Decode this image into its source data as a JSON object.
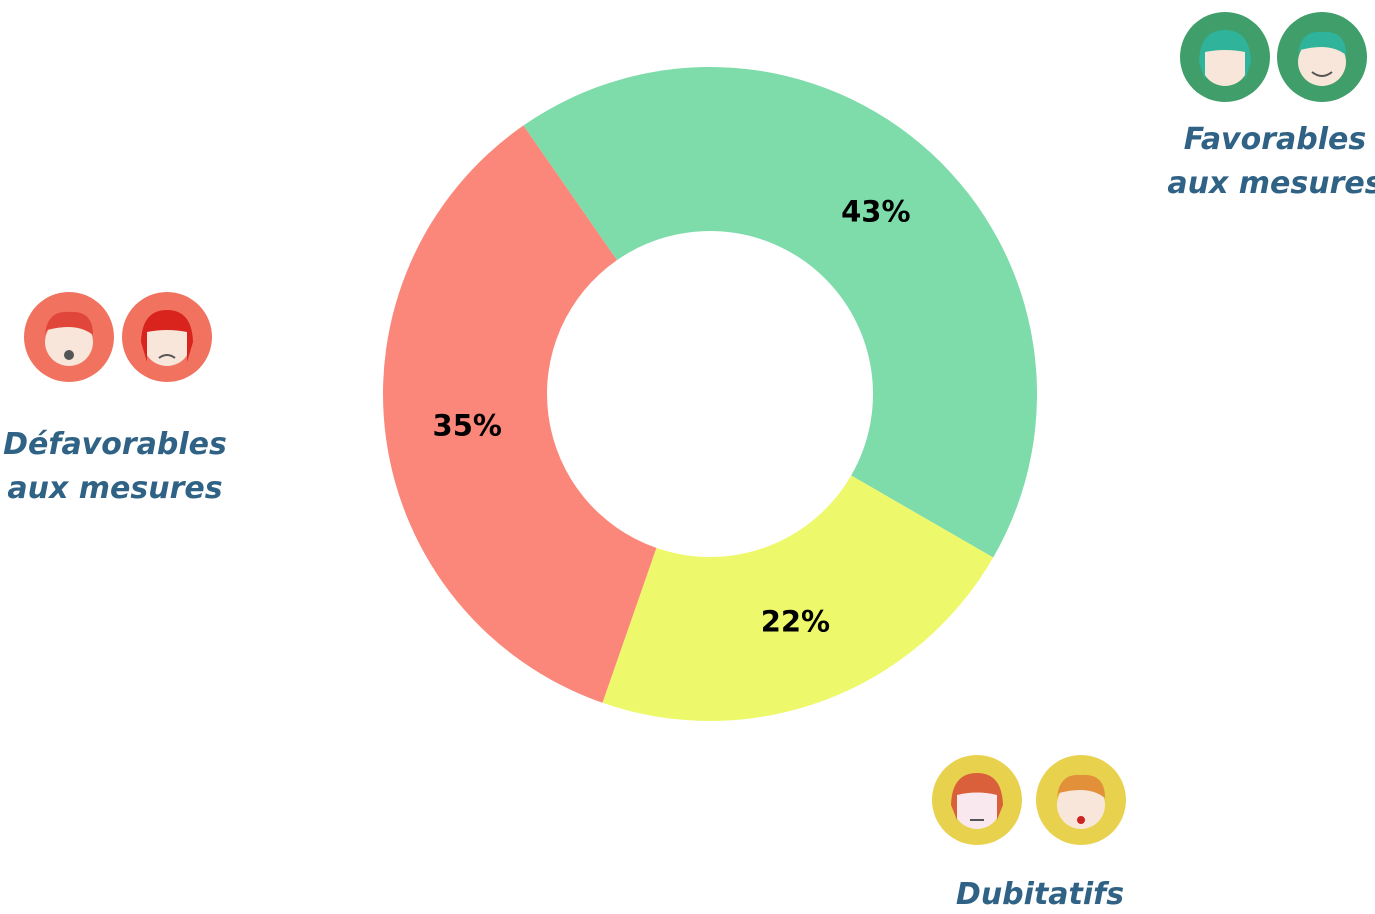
{
  "chart_data": {
    "type": "donut",
    "categories": [
      "Favorables aux mesures",
      "Dubitatifs",
      "Défavorables aux mesures"
    ],
    "values": [
      43,
      22,
      35
    ],
    "value_labels": [
      "43%",
      "22%",
      "35%"
    ],
    "colors": [
      "#7ddca9",
      "#eef86b",
      "#fa877a"
    ]
  }
}
